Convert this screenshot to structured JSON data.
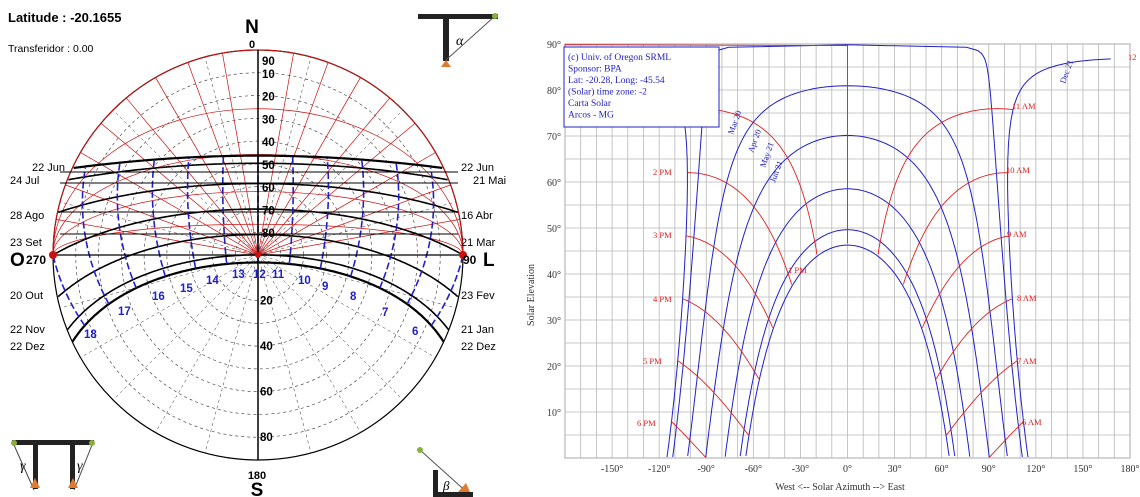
{
  "left": {
    "latitude_label": "Latitude : -20.1655",
    "transferidor_label": "Transferidor : 0.00",
    "cardinals": {
      "N": "N",
      "S": "S",
      "O": "O",
      "L": "L"
    },
    "top_deg": "0",
    "bottom_deg": "180",
    "left_deg": "270",
    "right_deg": "90",
    "ring_labels": [
      "90",
      "80",
      "70",
      "60",
      "50",
      "40",
      "30",
      "20",
      "10"
    ],
    "south_ring_labels": [
      "20",
      "40",
      "60",
      "80"
    ],
    "month_labels_left": [
      "22 Jun",
      "24 Jul",
      "28 Ago",
      "23 Set",
      "20 Out",
      "22 Nov",
      "22 Dez"
    ],
    "month_labels_right": [
      "22 Jun",
      "21 Mai",
      "16 Abr",
      "21 Mar",
      "23 Fev",
      "21 Jan",
      "22 Dez"
    ],
    "hour_labels": [
      "18",
      "17",
      "16",
      "15",
      "14",
      "13",
      "12",
      "11",
      "10",
      "9",
      "8",
      "7",
      "6"
    ],
    "icon_alpha": "α",
    "icon_beta": "β",
    "icon_gamma": "γ"
  },
  "legend": {
    "lines": [
      "(c) Univ. of Oregon SRML",
      "Sponsor: BPA",
      "Lat: -20.28, Long: -45.54",
      "(Solar) time zone: -2",
      "Carta Solar",
      "Arcos - MG"
    ]
  },
  "chart_data": {
    "type": "line",
    "xlabel": "West <-- Solar Azimuth --> East",
    "ylabel": "Solar Elevation",
    "xlim": [
      -180,
      180
    ],
    "ylim": [
      0,
      90
    ],
    "x_ticks": [
      "-150°",
      "-120°",
      "-90°",
      "-60°",
      "-30°",
      "0°",
      "30°",
      "60°",
      "90°",
      "120°",
      "150°",
      "180°"
    ],
    "y_ticks": [
      "10°",
      "20°",
      "30°",
      "40°",
      "50°",
      "60°",
      "70°",
      "80°",
      "90°"
    ],
    "grid": true,
    "series_colors": {
      "date": "#2020c8",
      "hour": "#e02020"
    },
    "date_series": [
      {
        "name": "Dec 21",
        "dec": -23.44
      },
      {
        "name": "Jan 21",
        "dec": -20.1
      },
      {
        "name": "Feb 20",
        "dec": -11.2
      },
      {
        "name": "Mar 20",
        "dec": -0.4
      },
      {
        "name": "Apr 20",
        "dec": 11.2
      },
      {
        "name": "May 21",
        "dec": 20.1
      },
      {
        "name": "Jun 21",
        "dec": 23.44
      }
    ],
    "hour_series": [
      {
        "name": "6 AM",
        "hour": 6
      },
      {
        "name": "7 AM",
        "hour": 7
      },
      {
        "name": "8 AM",
        "hour": 8
      },
      {
        "name": "9 AM",
        "hour": 9
      },
      {
        "name": "10 AM",
        "hour": 10
      },
      {
        "name": "11 AM",
        "hour": 11
      },
      {
        "name": "12",
        "hour": 12
      },
      {
        "name": "1 PM",
        "hour": 13
      },
      {
        "name": "2 PM",
        "hour": 14
      },
      {
        "name": "3 PM",
        "hour": 15
      },
      {
        "name": "4 PM",
        "hour": 16
      },
      {
        "name": "5 PM",
        "hour": 17
      },
      {
        "name": "6 PM",
        "hour": 18
      }
    ],
    "latitude": -20.28
  }
}
